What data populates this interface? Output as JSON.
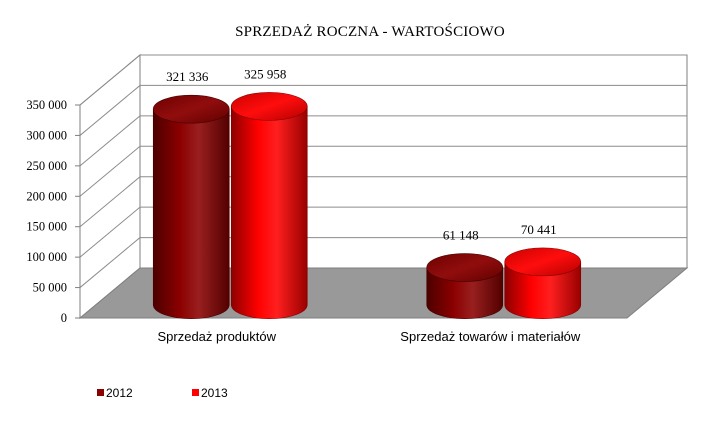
{
  "chart_data": {
    "type": "bar",
    "style": "3d-cylinder",
    "title": "SPRZEDAŻ ROCZNA - WARTOŚCIOWO",
    "categories": [
      "Sprzedaż produktów",
      "Sprzedaż towarów i materiałów"
    ],
    "series": [
      {
        "name": "2012",
        "values": [
          321336,
          61148
        ],
        "value_labels": [
          "321 336",
          "61 148"
        ],
        "color": "#8B0000"
      },
      {
        "name": "2013",
        "values": [
          325958,
          70441
        ],
        "value_labels": [
          "325 958",
          "70 441"
        ],
        "color": "#FF0000"
      }
    ],
    "y_ticks": [
      "0",
      "50 000",
      "100 000",
      "150 000",
      "200 000",
      "250 000",
      "300 000",
      "350 000"
    ],
    "ylim": [
      0,
      350000
    ],
    "grid": true,
    "legend": "bottom-left",
    "floor_color": "#999999"
  }
}
